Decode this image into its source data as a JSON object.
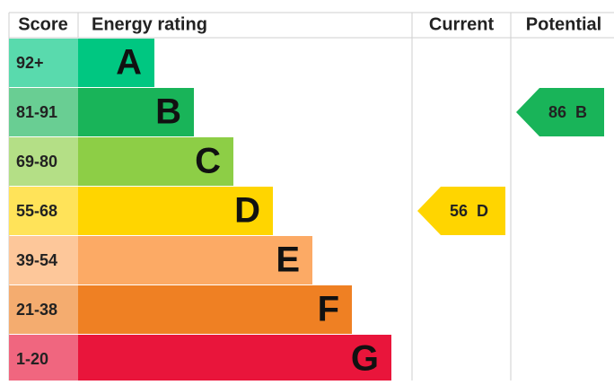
{
  "header": {
    "score": "Score",
    "rating": "Energy rating",
    "current": "Current",
    "potential": "Potential"
  },
  "bands": [
    {
      "score": "92+",
      "letter": "A",
      "color": "#00c781"
    },
    {
      "score": "81-91",
      "letter": "B",
      "color": "#19b459"
    },
    {
      "score": "69-80",
      "letter": "C",
      "color": "#8dce46"
    },
    {
      "score": "55-68",
      "letter": "D",
      "color": "#ffd500"
    },
    {
      "score": "39-54",
      "letter": "E",
      "color": "#fcaa65"
    },
    {
      "score": "21-38",
      "letter": "F",
      "color": "#ef8023"
    },
    {
      "score": "1-20",
      "letter": "G",
      "color": "#e9153b"
    }
  ],
  "current": {
    "score": 56,
    "letter": "D"
  },
  "potential": {
    "score": 86,
    "letter": "B"
  }
}
